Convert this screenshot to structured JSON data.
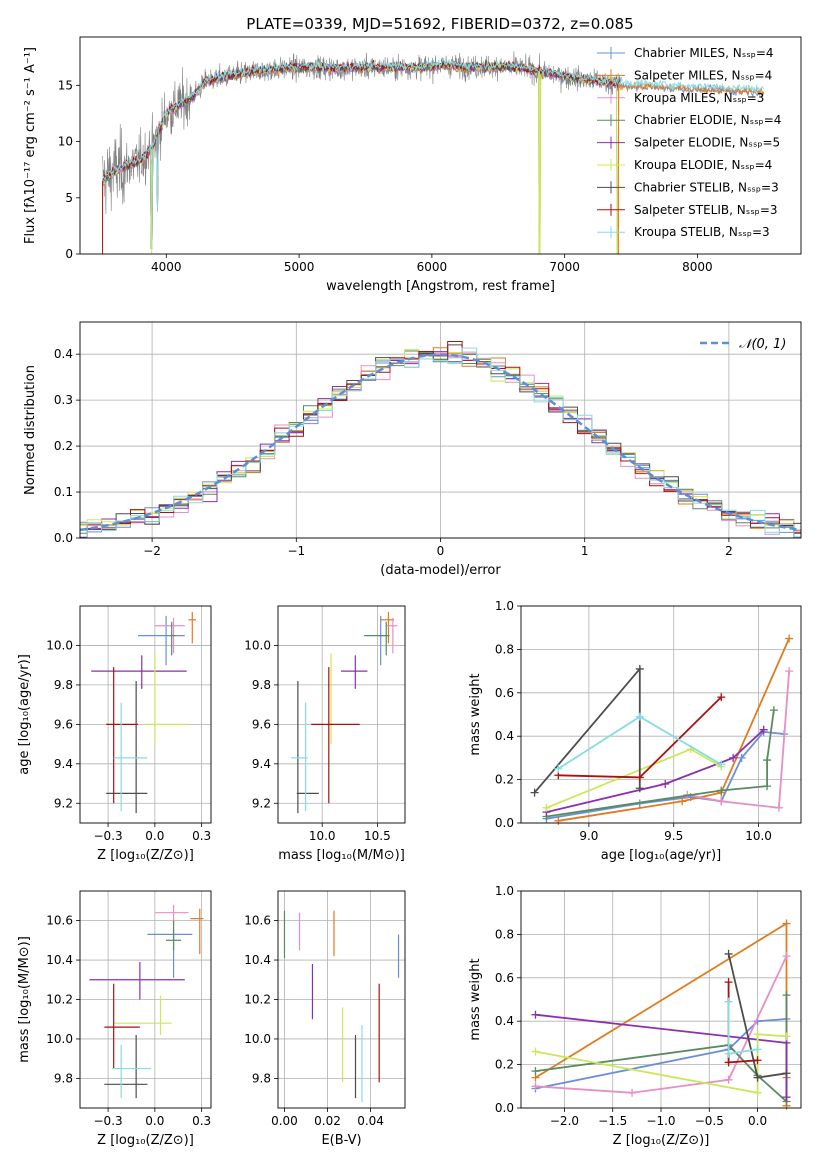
{
  "figure_title": "PLATE=0339, MJD=51692, FIBERID=0372, z=0.085",
  "colors": {
    "ch_miles": "#6b8fd6",
    "sa_miles": "#e07b1f",
    "kr_miles": "#e68fc5",
    "ch_elodie": "#5a8a60",
    "sa_elodie": "#8b2fae",
    "kr_elodie": "#c9e858",
    "ch_stelib": "#4d4d4d",
    "sa_stelib": "#aa1111",
    "kr_stelib": "#86dce3",
    "data": "#808080",
    "gauss": "#5b8fd6"
  },
  "chart_data": [
    {
      "type": "line",
      "title": "PLATE=0339, MJD=51692, FIBERID=0372, z=0.085",
      "xlabel": "wavelength [Angstrom, rest frame]",
      "ylabel": "Flux [fλ10⁻¹⁷ erg cm⁻² s⁻¹ A⁻¹]",
      "xlim": [
        3350,
        8780
      ],
      "ylim": [
        0,
        19.3
      ],
      "xticks": [
        4000,
        5000,
        6000,
        7000,
        8000
      ],
      "yticks": [
        0,
        5,
        10,
        15
      ],
      "legend_position": "right",
      "legend": [
        {
          "label": "Chabrier MILES, Nₛₛₚ=4",
          "color_key": "ch_miles"
        },
        {
          "label": "Salpeter MILES, Nₛₛₚ=4",
          "color_key": "sa_miles"
        },
        {
          "label": "Kroupa MILES, Nₛₛₚ=3",
          "color_key": "kr_miles"
        },
        {
          "label": "Chabrier ELODIE, Nₛₛₚ=4",
          "color_key": "ch_elodie"
        },
        {
          "label": "Salpeter ELODIE, Nₛₛₚ=5",
          "color_key": "sa_elodie"
        },
        {
          "label": "Kroupa ELODIE, Nₛₛₚ=4",
          "color_key": "kr_elodie"
        },
        {
          "label": "Chabrier STELIB, Nₛₛₚ=3",
          "color_key": "ch_stelib"
        },
        {
          "label": "Salpeter STELIB, Nₛₛₚ=3",
          "color_key": "sa_stelib"
        },
        {
          "label": "Kroupa STELIB, Nₛₛₚ=3",
          "color_key": "kr_stelib"
        }
      ],
      "continuum_x": [
        3520,
        3600,
        3700,
        3800,
        3900,
        4000,
        4100,
        4200,
        4300,
        4500,
        4700,
        4900,
        5100,
        5300,
        5500,
        5700,
        5900,
        6100,
        6300,
        6500,
        6700,
        6900,
        7100,
        7300,
        7400
      ],
      "continuum_y": [
        6.5,
        7.3,
        7.8,
        8.3,
        9.5,
        12.5,
        13.3,
        14.0,
        15.4,
        15.9,
        16.3,
        16.5,
        16.6,
        16.5,
        16.6,
        16.6,
        16.6,
        16.8,
        16.6,
        16.7,
        16.5,
        16.0,
        15.6,
        15.3,
        15.1
      ],
      "model_x_range": [
        3520,
        8500
      ],
      "data_x_range": [
        3520,
        7420
      ],
      "dips": [
        {
          "x": 3890,
          "y": 0.5
        },
        {
          "x": 3935,
          "y": 3.8
        },
        {
          "x": 6810,
          "y": 0.0
        },
        {
          "x": 7400,
          "y": 0.0
        }
      ]
    },
    {
      "type": "histogram",
      "xlabel": "(data-model)/error",
      "ylabel": "Normed distribution",
      "xlim": [
        -2.5,
        2.5
      ],
      "ylim": [
        0,
        0.47
      ],
      "xticks": [
        -2,
        -1,
        0,
        1,
        2
      ],
      "yticks": [
        0.0,
        0.1,
        0.2,
        0.3,
        0.4
      ],
      "bin_width": 0.1,
      "legend": [
        {
          "label": "𝒩(0, 1)",
          "color_key": "gauss",
          "style": "dashed"
        }
      ],
      "legend_position": "top-right",
      "noise_amplitude": 0.035
    },
    {
      "type": "scatter",
      "xlabel": "Z [log₁₀(Z/Z⊙)]",
      "ylabel": "age  [log₁₀(age/yr)]",
      "xlim": [
        -0.4,
        0.3
      ],
      "ylim": [
        9.1,
        10.2
      ],
      "xticks": [
        -0.25,
        0.0,
        0.25
      ],
      "yticks": [
        9.2,
        9.4,
        9.6,
        9.8,
        10.0
      ],
      "points": [
        {
          "key": "ch_miles",
          "x": 0.06,
          "y": 10.05,
          "xerr": [
            0.15,
            0.1
          ],
          "yerr": [
            0.15,
            0.1
          ]
        },
        {
          "key": "sa_miles",
          "x": 0.2,
          "y": 10.13,
          "xerr": [
            0.02,
            0.02
          ],
          "yerr": [
            0.12,
            0.04
          ]
        },
        {
          "key": "kr_miles",
          "x": 0.1,
          "y": 10.1,
          "xerr": [
            0.1,
            0.06
          ],
          "yerr": [
            0.14,
            0.04
          ]
        },
        {
          "key": "ch_elodie",
          "x": 0.09,
          "y": 10.05,
          "xerr": [
            0.01,
            0.02
          ],
          "yerr": [
            0.1,
            0.07
          ]
        },
        {
          "key": "sa_elodie",
          "x": -0.07,
          "y": 9.87,
          "xerr": [
            0.27,
            0.24
          ],
          "yerr": [
            0.09,
            0.08
          ]
        },
        {
          "key": "kr_elodie",
          "x": 0.0,
          "y": 9.6,
          "xerr": [
            0.05,
            0.17
          ],
          "yerr": [
            0.1,
            0.36
          ]
        },
        {
          "key": "ch_stelib",
          "x": -0.1,
          "y": 9.25,
          "xerr": [
            0.16,
            0.06
          ],
          "yerr": [
            0.1,
            0.57
          ]
        },
        {
          "key": "sa_stelib",
          "x": -0.22,
          "y": 9.6,
          "xerr": [
            0.04,
            0.13
          ],
          "yerr": [
            0.4,
            0.29
          ]
        },
        {
          "key": "kr_stelib",
          "x": -0.18,
          "y": 9.43,
          "xerr": [
            0.04,
            0.14
          ],
          "yerr": [
            0.27,
            0.28
          ]
        }
      ]
    },
    {
      "type": "scatter",
      "xlabel": "mass [log₁₀(M/M⊙)]",
      "ylabel": "",
      "xlim": [
        9.6,
        10.75
      ],
      "ylim": [
        9.1,
        10.2
      ],
      "xticks": [
        10.0,
        10.5
      ],
      "yticks": [
        9.2,
        9.4,
        9.6,
        9.8,
        10.0
      ],
      "points": [
        {
          "key": "ch_miles",
          "x": 10.53,
          "y": 10.05,
          "xerr": [
            0.02,
            0.04
          ],
          "yerr": [
            0.15,
            0.1
          ]
        },
        {
          "key": "sa_miles",
          "x": 10.6,
          "y": 10.13,
          "xerr": [
            0.07,
            0.05
          ],
          "yerr": [
            0.12,
            0.04
          ]
        },
        {
          "key": "kr_miles",
          "x": 10.64,
          "y": 10.1,
          "xerr": [
            0.06,
            0.04
          ],
          "yerr": [
            0.14,
            0.04
          ]
        },
        {
          "key": "ch_elodie",
          "x": 10.58,
          "y": 10.05,
          "xerr": [
            0.2,
            0.03
          ],
          "yerr": [
            0.1,
            0.07
          ]
        },
        {
          "key": "sa_elodie",
          "x": 10.3,
          "y": 9.87,
          "xerr": [
            0.13,
            0.11
          ],
          "yerr": [
            0.09,
            0.08
          ]
        },
        {
          "key": "kr_elodie",
          "x": 10.08,
          "y": 9.6,
          "xerr": [
            0.02,
            0.02
          ],
          "yerr": [
            0.1,
            0.36
          ]
        },
        {
          "key": "ch_stelib",
          "x": 9.78,
          "y": 9.25,
          "xerr": [
            0.01,
            0.19
          ],
          "yerr": [
            0.1,
            0.57
          ]
        },
        {
          "key": "sa_stelib",
          "x": 10.06,
          "y": 9.6,
          "xerr": [
            0.16,
            0.28
          ],
          "yerr": [
            0.4,
            0.29
          ]
        },
        {
          "key": "kr_stelib",
          "x": 9.85,
          "y": 9.43,
          "xerr": [
            0.13,
            0.02
          ],
          "yerr": [
            0.27,
            0.28
          ]
        }
      ]
    },
    {
      "type": "line",
      "xlabel": "age  [log₁₀(age/yr)]",
      "ylabel": "mass weight",
      "xlim": [
        8.6,
        10.25
      ],
      "ylim": [
        0,
        1.0
      ],
      "xticks": [
        9.0,
        9.5,
        10.0
      ],
      "yticks": [
        0.0,
        0.2,
        0.4,
        0.6,
        0.8,
        1.0
      ],
      "series": [
        {
          "key": "ch_miles",
          "x": [
            8.75,
            9.3,
            9.6,
            9.78,
            9.9,
            10.03,
            10.15
          ],
          "y": [
            0.02,
            0.09,
            0.12,
            0.1,
            0.3,
            0.42,
            0.41
          ]
        },
        {
          "key": "sa_miles",
          "x": [
            8.82,
            9.55,
            9.78,
            10.18
          ],
          "y": [
            0.01,
            0.1,
            0.14,
            0.85
          ]
        },
        {
          "key": "kr_miles",
          "x": [
            9.58,
            9.78,
            10.12,
            10.18
          ],
          "y": [
            0.13,
            0.1,
            0.07,
            0.7
          ]
        },
        {
          "key": "ch_elodie",
          "x": [
            8.75,
            9.78,
            10.05,
            10.05,
            10.09
          ],
          "y": [
            0.03,
            0.15,
            0.17,
            0.29,
            0.52
          ]
        },
        {
          "key": "sa_elodie",
          "x": [
            8.75,
            9.45,
            9.85,
            10.03
          ],
          "y": [
            0.05,
            0.18,
            0.3,
            0.43
          ]
        },
        {
          "key": "kr_elodie",
          "x": [
            8.75,
            9.6,
            9.78
          ],
          "y": [
            0.07,
            0.34,
            0.26
          ]
        },
        {
          "key": "ch_stelib",
          "x": [
            8.68,
            9.3,
            9.3
          ],
          "y": [
            0.14,
            0.71,
            0.16
          ]
        },
        {
          "key": "sa_stelib",
          "x": [
            8.82,
            9.3,
            9.78
          ],
          "y": [
            0.22,
            0.21,
            0.58
          ]
        },
        {
          "key": "kr_stelib",
          "x": [
            8.82,
            9.3,
            9.78
          ],
          "y": [
            0.25,
            0.49,
            0.27
          ]
        }
      ]
    },
    {
      "type": "scatter",
      "xlabel": "Z [log₁₀(Z/Z⊙)]",
      "ylabel": "mass [log₁₀(M/M⊙)]",
      "xlim": [
        -0.4,
        0.3
      ],
      "ylim": [
        9.65,
        10.75
      ],
      "xticks": [
        -0.25,
        0.0,
        0.25
      ],
      "yticks": [
        9.8,
        10.0,
        10.2,
        10.4,
        10.6
      ],
      "points": [
        {
          "key": "ch_miles",
          "x": 0.1,
          "y": 10.53,
          "xerr": [
            0.14,
            0.1
          ],
          "yerr": [
            0.22,
            0.03
          ]
        },
        {
          "key": "sa_miles",
          "x": 0.24,
          "y": 10.61,
          "xerr": [
            0.05,
            0.02
          ],
          "yerr": [
            0.18,
            0.05
          ]
        },
        {
          "key": "kr_miles",
          "x": 0.1,
          "y": 10.64,
          "xerr": [
            0.1,
            0.08
          ],
          "yerr": [
            0.06,
            0.04
          ]
        },
        {
          "key": "ch_elodie",
          "x": 0.1,
          "y": 10.5,
          "xerr": [
            0.04,
            0.04
          ],
          "yerr": [
            0.05,
            0.1
          ]
        },
        {
          "key": "sa_elodie",
          "x": -0.08,
          "y": 10.3,
          "xerr": [
            0.27,
            0.24
          ],
          "yerr": [
            0.1,
            0.09
          ]
        },
        {
          "key": "kr_elodie",
          "x": 0.03,
          "y": 10.08,
          "xerr": [
            0.25,
            0.06
          ],
          "yerr": [
            0.06,
            0.14
          ]
        },
        {
          "key": "ch_stelib",
          "x": -0.1,
          "y": 9.77,
          "xerr": [
            0.17,
            0.06
          ],
          "yerr": [
            0.07,
            0.25
          ]
        },
        {
          "key": "sa_stelib",
          "x": -0.22,
          "y": 10.06,
          "xerr": [
            0.05,
            0.14
          ],
          "yerr": [
            0.21,
            0.22
          ]
        },
        {
          "key": "kr_stelib",
          "x": -0.18,
          "y": 9.85,
          "xerr": [
            0.05,
            0.16
          ],
          "yerr": [
            0.15,
            0.12
          ]
        }
      ]
    },
    {
      "type": "errorbar",
      "xlabel": "E(B-V)",
      "ylabel": "",
      "xlim": [
        -0.003,
        0.056
      ],
      "ylim": [
        9.65,
        10.75
      ],
      "xticks": [
        0.0,
        0.02,
        0.04
      ],
      "yticks": [
        9.8,
        10.0,
        10.2,
        10.4,
        10.6
      ],
      "points": [
        {
          "key": "ch_miles",
          "x": 0.053,
          "y": 10.45,
          "yerr": [
            0.14,
            0.08
          ]
        },
        {
          "key": "sa_miles",
          "x": 0.023,
          "y": 10.53,
          "yerr": [
            0.11,
            0.12
          ]
        },
        {
          "key": "kr_miles",
          "x": 0.007,
          "y": 10.55,
          "yerr": [
            0.1,
            0.09
          ]
        },
        {
          "key": "ch_elodie",
          "x": 0.0,
          "y": 10.53,
          "yerr": [
            0.12,
            0.12
          ]
        },
        {
          "key": "sa_elodie",
          "x": 0.013,
          "y": 10.24,
          "yerr": [
            0.14,
            0.14
          ]
        },
        {
          "key": "kr_elodie",
          "x": 0.027,
          "y": 10.0,
          "yerr": [
            0.22,
            0.16
          ]
        },
        {
          "key": "ch_stelib",
          "x": 0.033,
          "y": 9.88,
          "yerr": [
            0.18,
            0.14
          ]
        },
        {
          "key": "sa_stelib",
          "x": 0.044,
          "y": 10.0,
          "yerr": [
            0.22,
            0.28
          ]
        },
        {
          "key": "kr_stelib",
          "x": 0.036,
          "y": 9.85,
          "yerr": [
            0.17,
            0.22
          ]
        }
      ]
    },
    {
      "type": "line",
      "xlabel": "Z [log₁₀(Z/Z⊙)]",
      "ylabel": "mass weight",
      "xlim": [
        -2.45,
        0.45
      ],
      "ylim": [
        0,
        1.0
      ],
      "xticks": [
        -2.0,
        -1.5,
        -1.0,
        -0.5,
        0.0
      ],
      "yticks": [
        0.0,
        0.2,
        0.4,
        0.6,
        0.8,
        1.0
      ],
      "series": [
        {
          "key": "ch_miles",
          "x": [
            -2.3,
            -0.3,
            0.0,
            0.3
          ],
          "y": [
            0.09,
            0.27,
            0.4,
            0.41
          ]
        },
        {
          "key": "sa_miles",
          "x": [
            -2.3,
            0.3,
            0.3,
            0.3
          ],
          "y": [
            0.14,
            0.85,
            0.14,
            0.01
          ]
        },
        {
          "key": "kr_miles",
          "x": [
            -2.3,
            -1.3,
            -0.3,
            0.3
          ],
          "y": [
            0.1,
            0.07,
            0.13,
            0.7
          ]
        },
        {
          "key": "ch_elodie",
          "x": [
            -2.3,
            -0.3,
            0.0,
            0.3,
            0.3
          ],
          "y": [
            0.17,
            0.29,
            0.15,
            0.03,
            0.52
          ]
        },
        {
          "key": "sa_elodie",
          "x": [
            -2.3,
            0.3,
            0.3
          ],
          "y": [
            0.43,
            0.3,
            0.05
          ]
        },
        {
          "key": "kr_elodie",
          "x": [
            -2.3,
            0.0,
            0.0,
            0.3
          ],
          "y": [
            0.26,
            0.07,
            0.34,
            0.33
          ]
        },
        {
          "key": "ch_stelib",
          "x": [
            -0.3,
            0.0,
            0.3
          ],
          "y": [
            0.71,
            0.14,
            0.16
          ]
        },
        {
          "key": "sa_stelib",
          "x": [
            -0.3,
            -0.3,
            0.0
          ],
          "y": [
            0.58,
            0.21,
            0.22
          ]
        },
        {
          "key": "kr_stelib",
          "x": [
            -0.3,
            -0.3,
            0.0
          ],
          "y": [
            0.49,
            0.25,
            0.27
          ]
        }
      ]
    }
  ]
}
